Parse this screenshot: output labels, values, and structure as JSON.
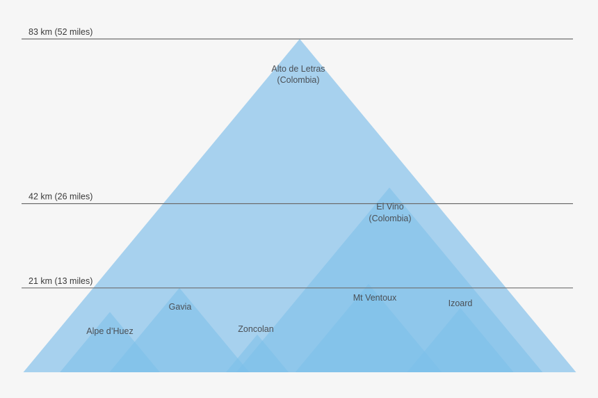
{
  "chart_data": {
    "type": "area",
    "title": "",
    "xlabel": "",
    "ylabel": "",
    "ylim": [
      0,
      83
    ],
    "grid": false,
    "reference_lines": [
      {
        "value": 83,
        "label": "83 km (52 miles)"
      },
      {
        "value": 42,
        "label": "42 km (26 miles)"
      },
      {
        "value": 21,
        "label": "21 km (13 miles)"
      }
    ],
    "climbs": [
      {
        "name": "Alto de Letras",
        "subtitle": "(Colombia)",
        "length_km": 83
      },
      {
        "name": "El Vino",
        "subtitle": "(Colombia)",
        "length_km": 46
      },
      {
        "name": "Mt Ventoux",
        "subtitle": "",
        "length_km": 22
      },
      {
        "name": "Izoard",
        "subtitle": "",
        "length_km": 16
      },
      {
        "name": "Gavia",
        "subtitle": "",
        "length_km": 21
      },
      {
        "name": "Alpe d’Huez",
        "subtitle": "",
        "length_km": 15
      },
      {
        "name": "Zoncolan",
        "subtitle": "",
        "length_km": 9.4
      }
    ],
    "colors": {
      "background": "#f6f6f6",
      "big_triangle": "#a7d1ee",
      "small_triangle": "#7cbfe9",
      "line": "#6e6e6e"
    }
  }
}
